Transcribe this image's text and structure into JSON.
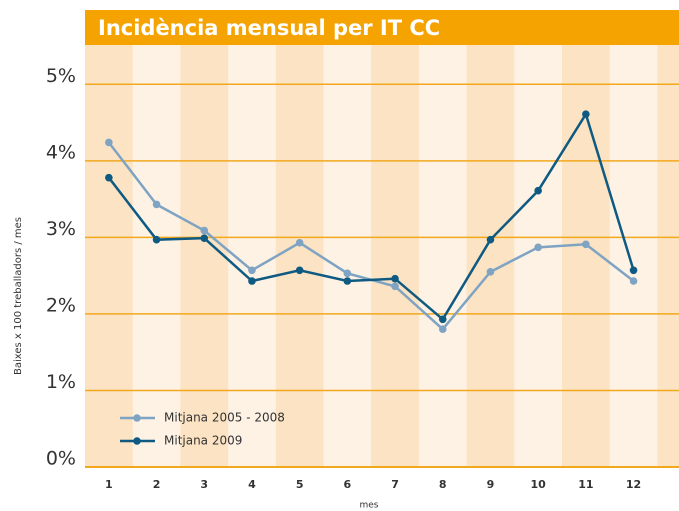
{
  "chart_data": {
    "type": "line",
    "title": "Incidència mensual per IT CC",
    "ylabel": "Baixes x 100 treballadors / mes",
    "xlabel": "mes",
    "categories": [
      "1",
      "2",
      "3",
      "4",
      "5",
      "6",
      "7",
      "8",
      "9",
      "10",
      "11",
      "12"
    ],
    "series": [
      {
        "name": "Mitjana 2005 - 2008",
        "color": "#7fa3c3",
        "values": [
          4.24,
          3.43,
          3.09,
          2.57,
          2.93,
          2.53,
          2.36,
          1.8,
          2.55,
          2.87,
          2.91,
          2.43
        ]
      },
      {
        "name": "Mitjana 2009",
        "color": "#0e5a82",
        "values": [
          3.78,
          2.97,
          2.99,
          2.43,
          2.57,
          2.43,
          2.46,
          1.93,
          2.97,
          3.61,
          4.61,
          2.57
        ]
      }
    ],
    "ylim": [
      0,
      5.2
    ],
    "yticks": [
      {
        "value": 0,
        "label": "0%"
      },
      {
        "value": 1,
        "label": "1%"
      },
      {
        "value": 2,
        "label": "2%"
      },
      {
        "value": 3,
        "label": "3%"
      },
      {
        "value": 4,
        "label": "4%"
      },
      {
        "value": 5,
        "label": "5%"
      }
    ],
    "grid": true,
    "legend": "lower left"
  }
}
